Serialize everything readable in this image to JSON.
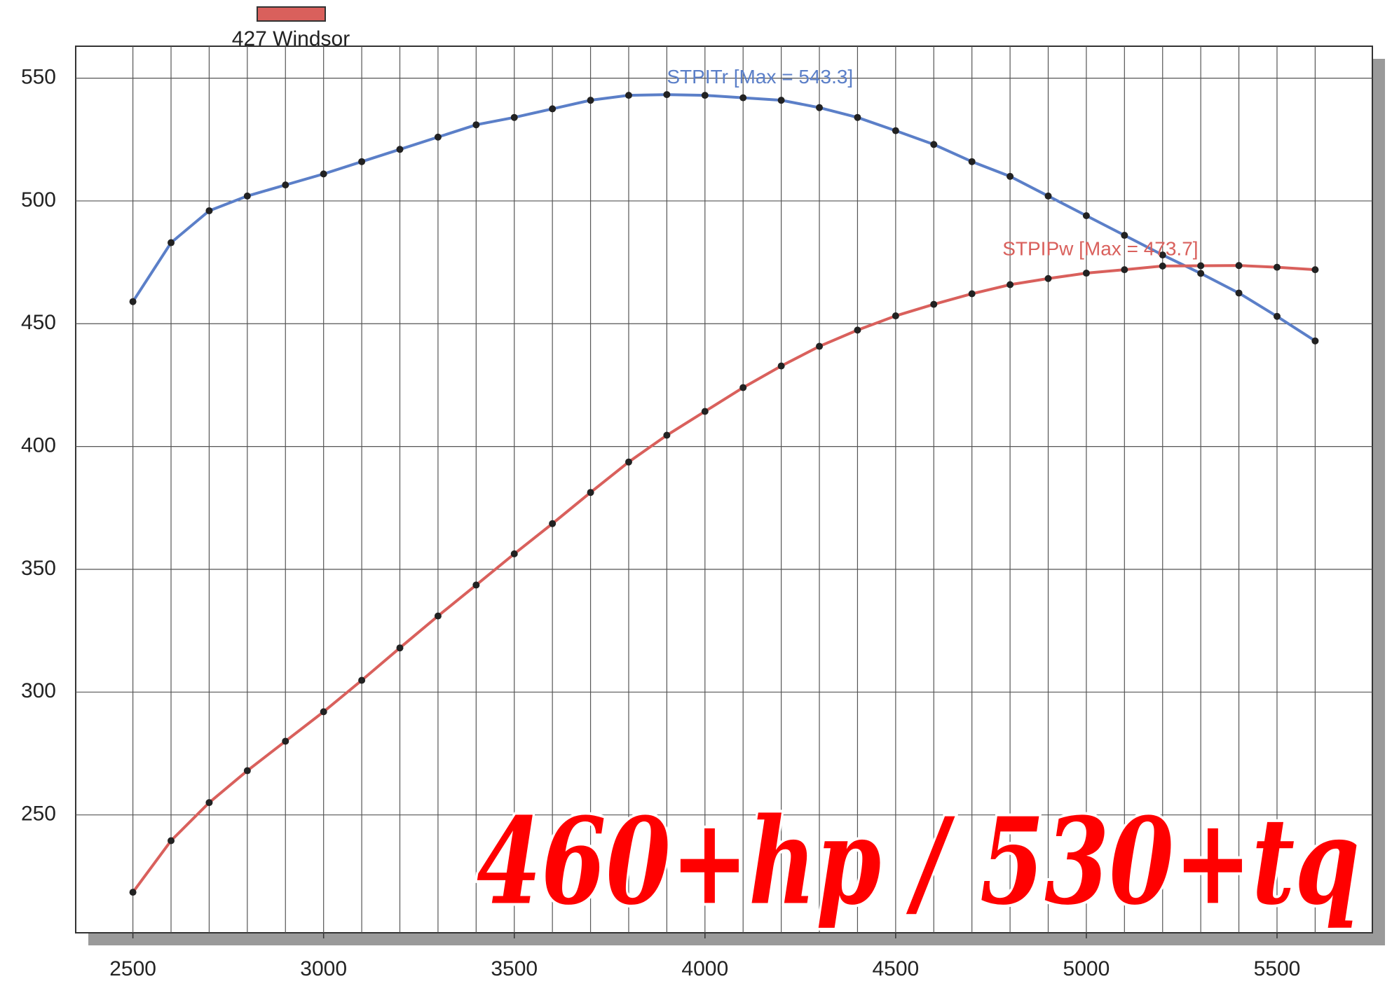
{
  "chart_data": {
    "type": "line",
    "legend": {
      "label": "427 Windsor",
      "color": "#d9605c"
    },
    "x": [
      2500,
      2600,
      2700,
      2800,
      2900,
      3000,
      3100,
      3200,
      3300,
      3400,
      3500,
      3600,
      3700,
      3800,
      3900,
      4000,
      4100,
      4200,
      4300,
      4400,
      4500,
      4600,
      4700,
      4800,
      4900,
      5000,
      5100,
      5200,
      5300,
      5400,
      5500,
      5600
    ],
    "series": [
      {
        "color": "#5b7fc8",
        "values": [
          459,
          483,
          496,
          502,
          506.5,
          511,
          516,
          521,
          526,
          531,
          534,
          537.5,
          541,
          543,
          543.3,
          543,
          542,
          541,
          538,
          534,
          528.6,
          523,
          516,
          510,
          502,
          494,
          486,
          478,
          470.5,
          462.5,
          453,
          443
        ]
      },
      {
        "color": "#d9605c",
        "values": [
          218.5,
          239.5,
          255,
          268,
          280,
          292,
          304.8,
          318,
          331,
          343.6,
          356.3,
          368.6,
          381.3,
          393.7,
          404.6,
          414.3,
          424,
          432.8,
          440.8,
          447.4,
          453.2,
          457.9,
          462.2,
          465.9,
          468.4,
          470.6,
          472,
          473.5,
          473.6,
          473.7,
          473,
          472
        ]
      }
    ],
    "annotations": [
      {
        "text": "STPITr [Max = 543.3]",
        "color": "#5b7fc8",
        "x": 3900,
        "y": 550
      },
      {
        "text": "STPIPw [Max = 473.7]",
        "color": "#d9605c",
        "x": 4780,
        "y": 480
      },
      {
        "text": "460+hp / 530+tq",
        "color": "#ff0000"
      }
    ],
    "xlim": [
      2350,
      5750
    ],
    "ylim": [
      202,
      563
    ],
    "xticks": [
      2500,
      3000,
      3500,
      4000,
      4500,
      5000,
      5500
    ],
    "yticks": [
      250,
      300,
      350,
      400,
      450,
      500,
      550
    ],
    "grid": true
  }
}
